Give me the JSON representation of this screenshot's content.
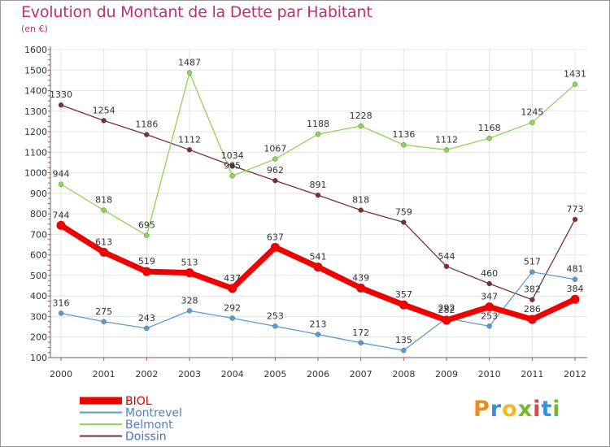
{
  "title": "Evolution du Montant de la Dette par Habitant",
  "unit": "(en €)",
  "logo": {
    "letters": [
      "P",
      "r",
      "o",
      "x",
      "i",
      "t",
      "i"
    ],
    "colors": [
      "#f08a1c",
      "#3d8fd8",
      "#f5b81f",
      "#74b82e",
      "#e8414a",
      "#3d8fd8",
      "#74b82e"
    ]
  },
  "chart_data": {
    "type": "line",
    "title": "Evolution du Montant de la Dette par Habitant",
    "ylabel": "(en €)",
    "xlabel": "",
    "x": [
      "2000",
      "2001",
      "2002",
      "2003",
      "2004",
      "2005",
      "2006",
      "2007",
      "2008",
      "2009",
      "2010",
      "2011",
      "2012"
    ],
    "ylim": [
      100,
      1600
    ],
    "yticks": [
      100,
      200,
      300,
      400,
      500,
      600,
      700,
      800,
      900,
      1000,
      1100,
      1200,
      1300,
      1400,
      1500,
      1600
    ],
    "grid": true,
    "legend": "bottom-left",
    "series": [
      {
        "name": "BIOL",
        "color": "#f00000",
        "values": [
          744,
          613,
          519,
          513,
          437,
          637,
          541,
          439,
          357,
          282,
          347,
          286,
          384
        ]
      },
      {
        "name": "Montrevel",
        "color": "#5b9bd5",
        "values": [
          316,
          275,
          243,
          328,
          292,
          253,
          213,
          172,
          135,
          292,
          253,
          517,
          481
        ]
      },
      {
        "name": "Belmont",
        "color": "#8ed55a",
        "values": [
          944,
          818,
          695,
          1487,
          985,
          1067,
          1188,
          1228,
          1136,
          1112,
          1168,
          1245,
          1431
        ]
      },
      {
        "name": "Doissin",
        "color": "#7a3030",
        "values": [
          1330,
          1254,
          1186,
          1112,
          1034,
          962,
          891,
          818,
          759,
          544,
          460,
          382,
          773
        ]
      }
    ]
  }
}
